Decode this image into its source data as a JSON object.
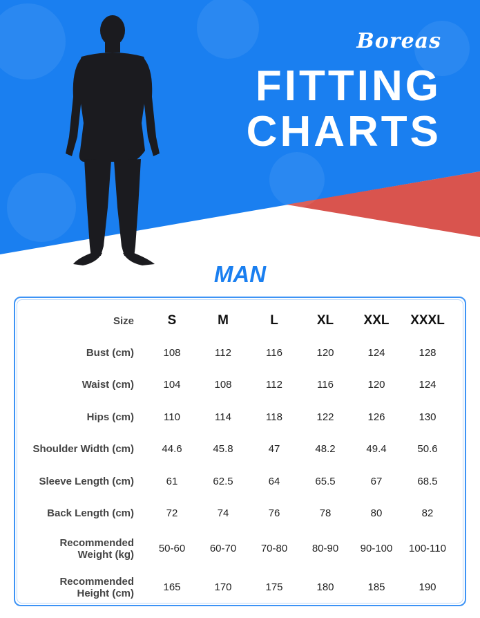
{
  "header": {
    "brand": "Boreas",
    "title_line1": "FITTING",
    "title_line2": "CHARTS",
    "bg_color": "#1a7ff0",
    "accent_color": "#d9544e"
  },
  "section": {
    "title": "MAN"
  },
  "table": {
    "columns": [
      "Size",
      "S",
      "M",
      "L",
      "XL",
      "XXL",
      "XXXL"
    ],
    "rows": [
      {
        "label": "Bust (cm)",
        "values": [
          "108",
          "112",
          "116",
          "120",
          "124",
          "128"
        ]
      },
      {
        "label": "Waist (cm)",
        "values": [
          "104",
          "108",
          "112",
          "116",
          "120",
          "124"
        ]
      },
      {
        "label": "Hips (cm)",
        "values": [
          "110",
          "114",
          "118",
          "122",
          "126",
          "130"
        ]
      },
      {
        "label": "Shoulder Width (cm)",
        "values": [
          "44.6",
          "45.8",
          "47",
          "48.2",
          "49.4",
          "50.6"
        ]
      },
      {
        "label": "Sleeve Length (cm)",
        "values": [
          "61",
          "62.5",
          "64",
          "65.5",
          "67",
          "68.5"
        ]
      },
      {
        "label": "Back Length (cm)",
        "values": [
          "72",
          "74",
          "76",
          "78",
          "80",
          "82"
        ]
      },
      {
        "label_line1": "Recommended",
        "label_line2": "Weight (kg)",
        "values": [
          "50-60",
          "60-70",
          "70-80",
          "80-90",
          "90-100",
          "100-110"
        ]
      },
      {
        "label_line1": "Recommended",
        "label_line2": "Height (cm)",
        "values": [
          "165",
          "170",
          "175",
          "180",
          "185",
          "190"
        ]
      }
    ]
  }
}
